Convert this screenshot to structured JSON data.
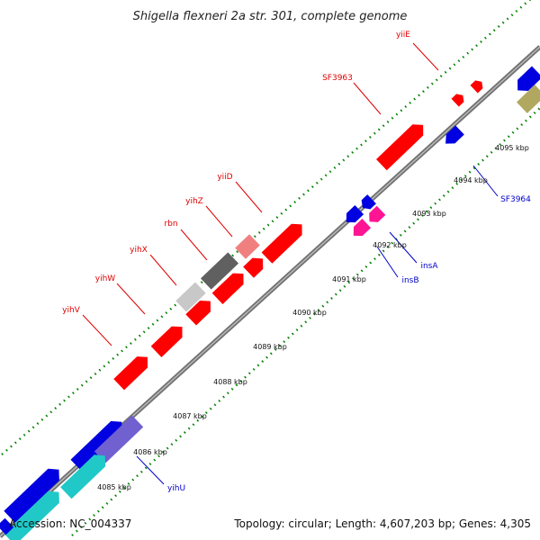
{
  "title": "Shigella flexneri 2a str. 301, complete genome",
  "footer": {
    "accession": "Accession: NC_004337",
    "summary": "Topology: circular; Length: 4,607,203 bp; Genes: 4,305"
  },
  "ticks": [
    "4085 kbp",
    "4086 kbp",
    "4087 kbp",
    "4088 kbp",
    "4089 kbp",
    "4090 kbp",
    "4091 kbp",
    "4092 kbp",
    "4093 kbp",
    "4094 kbp",
    "4095 kbp"
  ],
  "gene_labels": [
    {
      "name": "yiiE",
      "strand": "plus"
    },
    {
      "name": "SF3963",
      "strand": "plus"
    },
    {
      "name": "yiiD",
      "strand": "plus"
    },
    {
      "name": "yihZ",
      "strand": "plus"
    },
    {
      "name": "rbn",
      "strand": "plus"
    },
    {
      "name": "yihX",
      "strand": "plus"
    },
    {
      "name": "yihW",
      "strand": "plus"
    },
    {
      "name": "yihV",
      "strand": "plus"
    },
    {
      "name": "SF3964",
      "strand": "minus"
    },
    {
      "name": "insA",
      "strand": "minus"
    },
    {
      "name": "insB",
      "strand": "minus"
    },
    {
      "name": "yihU",
      "strand": "minus"
    }
  ],
  "colors": {
    "cds_plus": "#ff0000",
    "cds_minus": "#0000e0",
    "mobile": "#ff1493",
    "cyan": "#20c8c8",
    "purple": "#7060d0",
    "gray_dark": "#606060",
    "gray_light": "#c8c8c8",
    "pink": "#f08080",
    "olive": "#b0a860",
    "backbone": "#808080",
    "tick_mark": "#008000"
  }
}
